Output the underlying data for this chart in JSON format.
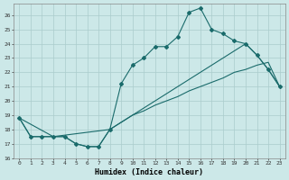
{
  "xlabel": "Humidex (Indice chaleur)",
  "background_color": "#cce8e8",
  "grid_color": "#aacccc",
  "line_color": "#1a6b6b",
  "xlim": [
    -0.5,
    23.5
  ],
  "ylim": [
    16,
    26.8
  ],
  "yticks": [
    16,
    17,
    18,
    19,
    20,
    21,
    22,
    23,
    24,
    25,
    26
  ],
  "xticks": [
    0,
    1,
    2,
    3,
    4,
    5,
    6,
    7,
    8,
    9,
    10,
    11,
    12,
    13,
    14,
    15,
    16,
    17,
    18,
    19,
    20,
    21,
    22,
    23
  ],
  "line1_x": [
    0,
    1,
    2,
    3,
    4,
    5,
    6,
    7,
    8,
    9,
    10,
    11,
    12,
    13,
    14,
    15,
    16,
    17,
    18,
    19,
    20,
    21,
    22,
    23
  ],
  "line1_y": [
    18.8,
    17.5,
    17.5,
    17.5,
    17.5,
    17.0,
    16.8,
    16.8,
    18.0,
    18.5,
    19.0,
    19.3,
    19.7,
    20.0,
    20.3,
    20.7,
    21.0,
    21.3,
    21.6,
    22.0,
    22.2,
    22.5,
    22.7,
    21.0
  ],
  "line2_x": [
    0,
    1,
    2,
    3,
    4,
    5,
    6,
    7,
    8,
    9,
    10,
    11,
    12,
    13,
    14,
    15,
    16,
    17,
    18,
    19,
    20,
    21,
    22,
    23
  ],
  "line2_y": [
    18.8,
    17.5,
    17.5,
    17.5,
    17.5,
    17.0,
    16.8,
    16.8,
    18.0,
    21.2,
    22.5,
    23.0,
    23.8,
    23.8,
    24.5,
    26.2,
    26.5,
    25.0,
    24.7,
    24.2,
    24.0,
    23.2,
    22.2,
    21.0
  ],
  "line3_x": [
    0,
    3,
    8,
    20,
    21,
    22,
    23
  ],
  "line3_y": [
    18.8,
    17.5,
    18.0,
    24.0,
    23.2,
    22.2,
    21.0
  ]
}
